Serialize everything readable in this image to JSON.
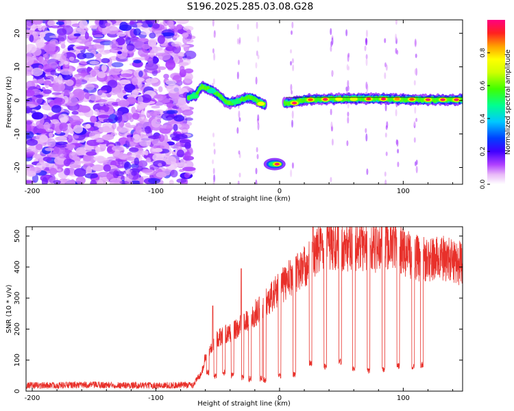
{
  "title": "S196.2025.285.03.08.G28",
  "colors": {
    "snr_line": "#e8302a",
    "colormap": [
      "#ffffff",
      "#dfc6f2",
      "#9a4ef0",
      "#5a00ee",
      "#0000ff",
      "#00c8ff",
      "#00ff80",
      "#a0ff00",
      "#ffff00",
      "#ffa500",
      "#ff3030",
      "#ff0080"
    ]
  },
  "chart_data": [
    {
      "type": "heatmap",
      "name": "spectrogram",
      "xlabel": "Height of straight line (km)",
      "ylabel": "Frequency (Hz)",
      "xlim": [
        -205,
        148
      ],
      "ylim": [
        -25,
        24
      ],
      "xticks": [
        -200,
        -100,
        0,
        100
      ],
      "xtick_labels": [
        "-200",
        "-100",
        "0",
        "100"
      ],
      "yticks": [
        -20,
        -10,
        0,
        10,
        20
      ],
      "ytick_labels": [
        "-20",
        "-10",
        "0",
        "10",
        "20"
      ],
      "colorbar": {
        "label": "Normalized spectral amplitude",
        "range": [
          0,
          1
        ],
        "ticks": [
          0.0,
          0.2,
          0.4,
          0.6,
          0.8
        ],
        "tick_labels": [
          "0.0",
          "0.2",
          "0.4",
          "0.6",
          "0.8"
        ]
      },
      "noise_region_km": [
        -205,
        -72
      ],
      "ridge": [
        [
          -73,
          1.0
        ],
        [
          -68,
          1.5
        ],
        [
          -63,
          4.2
        ],
        [
          -58,
          3.5
        ],
        [
          -54,
          2.8
        ],
        [
          -50,
          1.8
        ],
        [
          -47,
          0.8
        ],
        [
          -44,
          -0.3
        ],
        [
          -40,
          -0.8
        ],
        [
          -36,
          -0.5
        ],
        [
          -32,
          0.0
        ],
        [
          -28,
          0.7
        ],
        [
          -24,
          0.8
        ],
        [
          -20,
          0.3
        ],
        [
          -16,
          -0.5
        ],
        [
          -13,
          -1.2
        ],
        [
          5,
          -0.8
        ],
        [
          10,
          -0.7
        ],
        [
          20,
          0.2
        ],
        [
          30,
          0.3
        ],
        [
          40,
          0.4
        ],
        [
          55,
          0.5
        ],
        [
          70,
          0.5
        ],
        [
          85,
          0.5
        ],
        [
          100,
          0.3
        ],
        [
          115,
          0.2
        ],
        [
          130,
          0.2
        ],
        [
          148,
          0.2
        ]
      ],
      "hot_spots": [
        [
          -69,
          1.2,
          0.5
        ],
        [
          -55,
          2.8,
          0.45
        ],
        [
          -35,
          -0.4,
          0.5
        ],
        [
          -15,
          -1.0,
          0.75
        ],
        [
          -2,
          -19.0,
          1.0
        ],
        [
          12,
          -0.8,
          1.0
        ],
        [
          25,
          0.2,
          0.9
        ],
        [
          37,
          0.3,
          1.0
        ],
        [
          48,
          0.4,
          0.75
        ],
        [
          60,
          0.4,
          0.7
        ],
        [
          72,
          0.4,
          0.95
        ],
        [
          84,
          0.4,
          1.0
        ],
        [
          95,
          0.4,
          0.85
        ],
        [
          107,
          0.3,
          0.9
        ],
        [
          120,
          0.2,
          1.0
        ],
        [
          132,
          0.2,
          1.0
        ],
        [
          143,
          0.2,
          1.0
        ]
      ],
      "isolated_feature": {
        "x": [
          -11,
          3
        ],
        "freq": -19.0
      }
    },
    {
      "type": "line",
      "name": "snr",
      "xlabel": "Height of straight line (km)",
      "ylabel": "SNR (10 * v/v)",
      "xlim": [
        -205,
        148
      ],
      "ylim": [
        0,
        530
      ],
      "xticks": [
        -200,
        -100,
        0,
        100
      ],
      "xtick_labels": [
        "-200",
        "-100",
        "0",
        "100"
      ],
      "yticks": [
        0,
        100,
        200,
        300,
        400,
        500
      ],
      "ytick_labels": [
        "0",
        "100",
        "200",
        "300",
        "400",
        "500"
      ],
      "envelope": [
        [
          -205,
          18
        ],
        [
          -150,
          20
        ],
        [
          -100,
          18
        ],
        [
          -70,
          20
        ],
        [
          -63,
          60
        ],
        [
          -60,
          110
        ],
        [
          -55,
          150
        ],
        [
          -50,
          170
        ],
        [
          -45,
          180
        ],
        [
          -40,
          190
        ],
        [
          -35,
          200
        ],
        [
          -30,
          215
        ],
        [
          -25,
          230
        ],
        [
          -20,
          250
        ],
        [
          -15,
          270
        ],
        [
          -10,
          290
        ],
        [
          -5,
          310
        ],
        [
          0,
          330
        ],
        [
          5,
          350
        ],
        [
          10,
          370
        ],
        [
          15,
          385
        ],
        [
          20,
          400
        ],
        [
          25,
          420
        ],
        [
          30,
          450
        ],
        [
          35,
          475
        ],
        [
          40,
          470
        ],
        [
          50,
          460
        ],
        [
          60,
          470
        ],
        [
          70,
          465
        ],
        [
          80,
          460
        ],
        [
          90,
          470
        ],
        [
          100,
          450
        ],
        [
          110,
          430
        ],
        [
          120,
          420
        ],
        [
          130,
          430
        ],
        [
          140,
          420
        ],
        [
          148,
          410
        ]
      ],
      "spikes": [
        [
          -54,
          275
        ],
        [
          -31,
          395
        ],
        [
          27,
          540
        ],
        [
          78,
          535
        ],
        [
          92,
          535
        ]
      ],
      "dropouts": [
        [
          -58,
          50
        ],
        [
          -52,
          40
        ],
        [
          -45,
          50
        ],
        [
          -38,
          40
        ],
        [
          -30,
          35
        ],
        [
          -24,
          30
        ],
        [
          -15,
          30
        ],
        [
          -12,
          25
        ],
        [
          0,
          40
        ],
        [
          12,
          45
        ],
        [
          25,
          80
        ],
        [
          37,
          70
        ],
        [
          49,
          85
        ],
        [
          60,
          60
        ],
        [
          72,
          55
        ],
        [
          84,
          60
        ],
        [
          96,
          70
        ],
        [
          108,
          70
        ],
        [
          115,
          75
        ]
      ]
    }
  ]
}
